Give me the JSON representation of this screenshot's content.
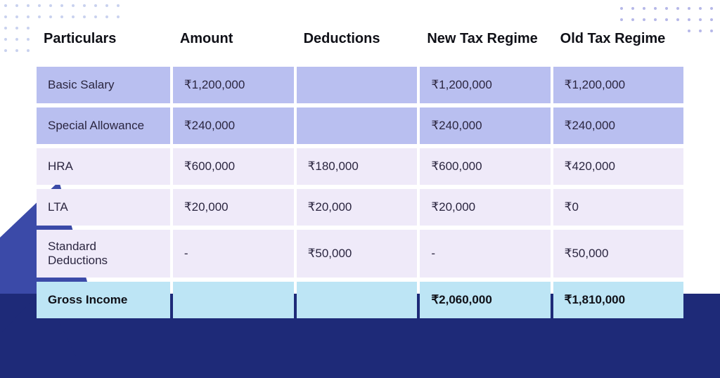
{
  "colors": {
    "row_a": "#b9bff0",
    "row_b": "#efeaf9",
    "row_total": "#bde5f5",
    "text": "#2b2640",
    "header_text": "#0f1017",
    "bg_dark": "#1e2a78",
    "bg_mid": "#3b4aa8",
    "dot_left": "#c9d2ef",
    "dot_right": "#b6b8e8"
  },
  "decor": {
    "left_dots": {
      "rows": 5,
      "cols": 11
    },
    "right_dots": {
      "rows": 3,
      "cols": 9
    }
  },
  "table": {
    "columns": [
      "Particulars",
      "Amount",
      "Deductions",
      "New Tax Regime",
      "Old Tax Regime"
    ],
    "rows": [
      {
        "variant": "a",
        "cells": [
          "Basic Salary",
          "₹1,200,000",
          "",
          "₹1,200,000",
          "₹1,200,000"
        ]
      },
      {
        "variant": "a",
        "cells": [
          "Special Allowance",
          "₹240,000",
          "",
          "₹240,000",
          "₹240,000"
        ]
      },
      {
        "variant": "b",
        "cells": [
          "HRA",
          "₹600,000",
          "₹180,000",
          "₹600,000",
          "₹420,000"
        ]
      },
      {
        "variant": "b",
        "cells": [
          "LTA",
          "₹20,000",
          "₹20,000",
          "₹20,000",
          "₹0"
        ]
      },
      {
        "variant": "b",
        "cells": [
          "Standard Deductions",
          "-",
          "₹50,000",
          "-",
          "₹50,000"
        ]
      },
      {
        "variant": "total",
        "cells": [
          "Gross Income",
          "",
          "",
          "₹2,060,000",
          "₹1,810,000"
        ]
      }
    ]
  }
}
